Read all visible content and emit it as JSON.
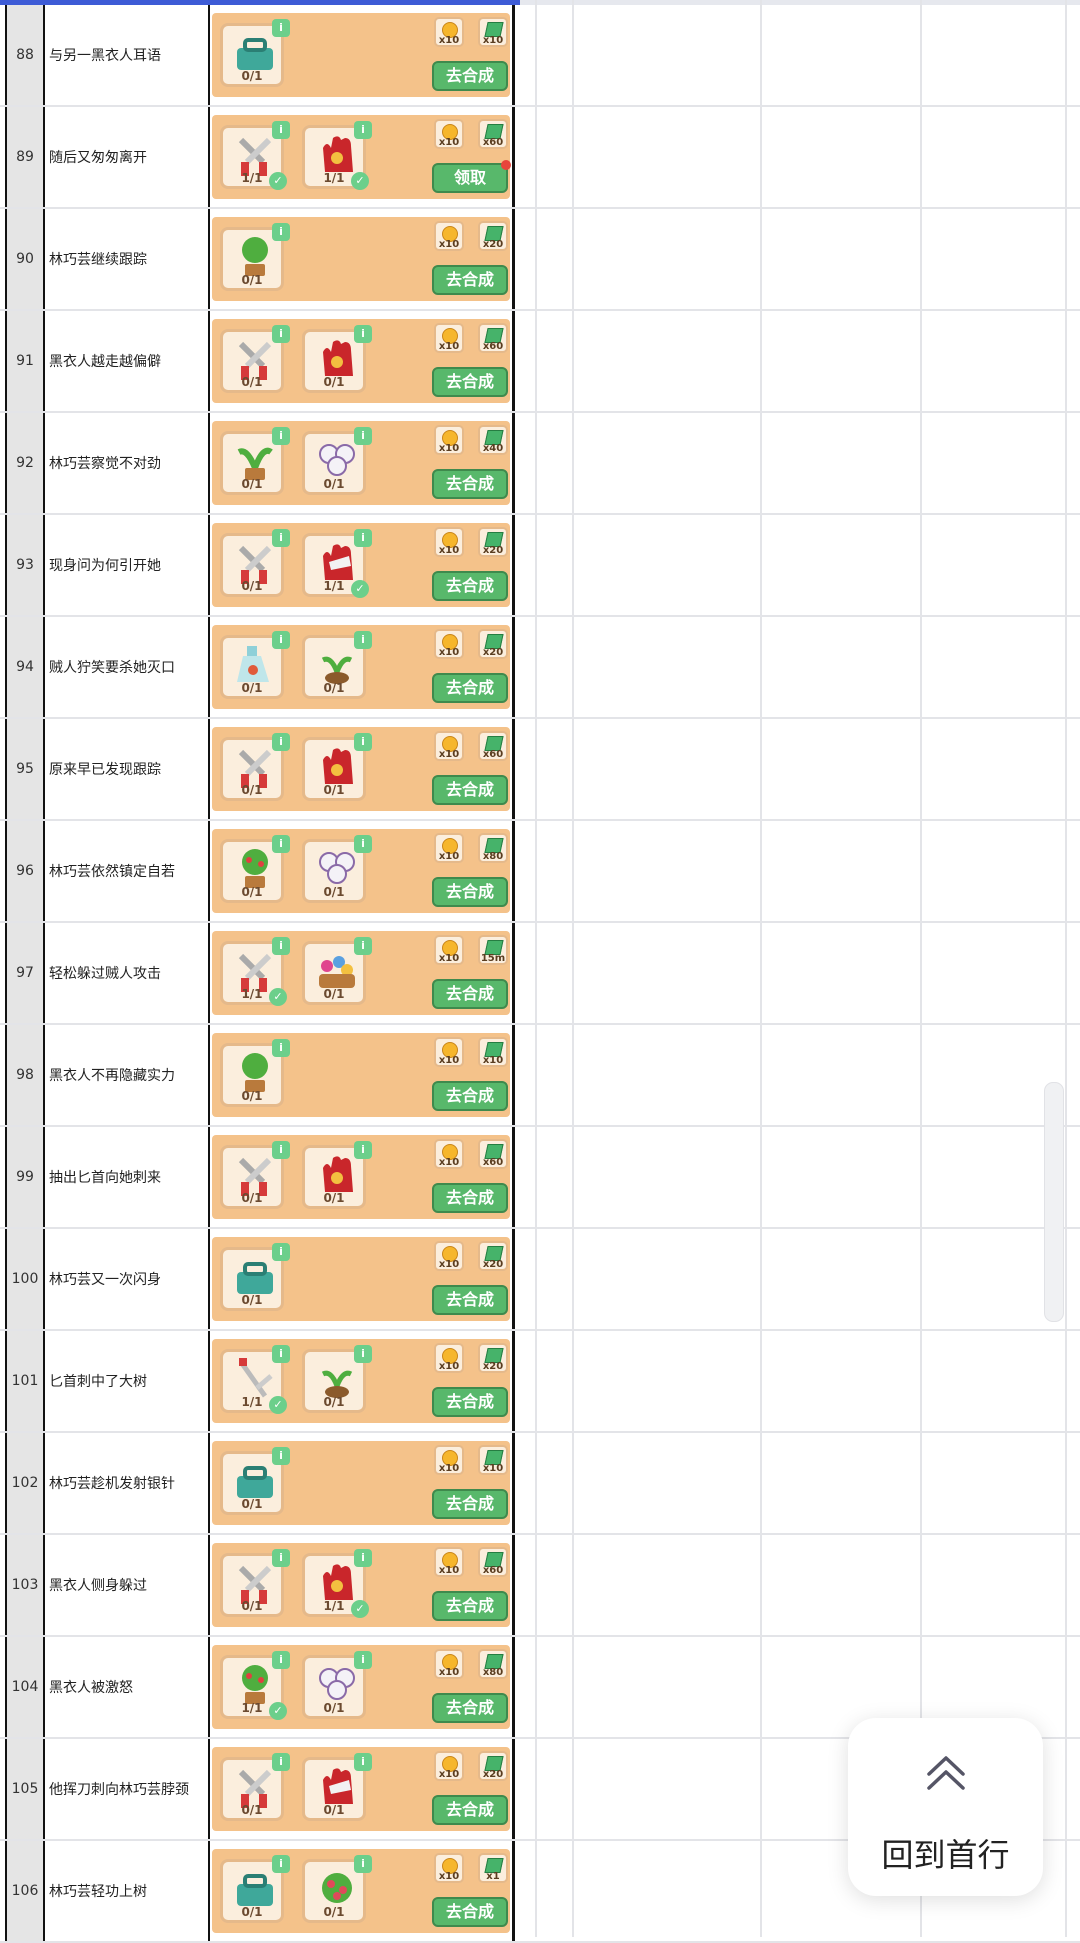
{
  "rows": [
    {
      "no": "88",
      "desc": "与另一黑衣人耳语",
      "items": [
        {
          "icon": "toolbox-icon",
          "count": "0/1",
          "done": false
        }
      ],
      "rewards": [
        "x10",
        "x10"
      ],
      "action": "去合成",
      "dot": false
    },
    {
      "no": "89",
      "desc": "随后又匆匆离开",
      "items": [
        {
          "icon": "scissors-icon",
          "count": "1/1",
          "done": true
        },
        {
          "icon": "glove-icon",
          "count": "1/1",
          "done": true
        }
      ],
      "rewards": [
        "x10",
        "x60"
      ],
      "action": "领取",
      "dot": true
    },
    {
      "no": "90",
      "desc": "林巧芸继续跟踪",
      "items": [
        {
          "icon": "potted-tree-icon",
          "count": "0/1",
          "done": false
        }
      ],
      "rewards": [
        "x10",
        "x20"
      ],
      "action": "去合成",
      "dot": false
    },
    {
      "no": "91",
      "desc": "黑衣人越走越偏僻",
      "items": [
        {
          "icon": "scissors-icon",
          "count": "0/1",
          "done": false
        },
        {
          "icon": "glove-icon",
          "count": "0/1",
          "done": false
        }
      ],
      "rewards": [
        "x10",
        "x60"
      ],
      "action": "去合成",
      "dot": false
    },
    {
      "no": "92",
      "desc": "林巧芸察觉不对劲",
      "items": [
        {
          "icon": "sprout-pot-icon",
          "count": "0/1",
          "done": false
        },
        {
          "icon": "cotton-icon",
          "count": "0/1",
          "done": false
        }
      ],
      "rewards": [
        "x10",
        "x40"
      ],
      "action": "去合成",
      "dot": false
    },
    {
      "no": "93",
      "desc": "现身问为何引开她",
      "items": [
        {
          "icon": "scissors-icon",
          "count": "0/1",
          "done": false
        },
        {
          "icon": "white-glove-icon",
          "count": "1/1",
          "done": true
        }
      ],
      "rewards": [
        "x10",
        "x20"
      ],
      "action": "去合成",
      "dot": false
    },
    {
      "no": "94",
      "desc": "贼人狞笑要杀她灭口",
      "items": [
        {
          "icon": "bottle-icon",
          "count": "0/1",
          "done": false
        },
        {
          "icon": "seedling-icon",
          "count": "0/1",
          "done": false
        }
      ],
      "rewards": [
        "x10",
        "x20"
      ],
      "action": "去合成",
      "dot": false
    },
    {
      "no": "95",
      "desc": "原来早已发现跟踪",
      "items": [
        {
          "icon": "scissors-icon",
          "count": "0/1",
          "done": false
        },
        {
          "icon": "glove-icon",
          "count": "0/1",
          "done": false
        }
      ],
      "rewards": [
        "x10",
        "x60"
      ],
      "action": "去合成",
      "dot": false
    },
    {
      "no": "96",
      "desc": "林巧芸依然镇定自若",
      "items": [
        {
          "icon": "fruit-tree-icon",
          "count": "0/1",
          "done": false
        },
        {
          "icon": "cotton-icon",
          "count": "0/1",
          "done": false
        }
      ],
      "rewards": [
        "x10",
        "x80"
      ],
      "action": "去合成",
      "dot": false
    },
    {
      "no": "97",
      "desc": "轻松躲过贼人攻击",
      "items": [
        {
          "icon": "scissors-icon",
          "count": "1/1",
          "done": true
        },
        {
          "icon": "flower-basket-icon",
          "count": "0/1",
          "done": false
        }
      ],
      "rewards": [
        "x10",
        "15m"
      ],
      "action": "去合成",
      "dot": false
    },
    {
      "no": "98",
      "desc": "黑衣人不再隐藏实力",
      "items": [
        {
          "icon": "potted-tree-icon",
          "count": "0/1",
          "done": false
        }
      ],
      "rewards": [
        "x10",
        "x10"
      ],
      "action": "去合成",
      "dot": false
    },
    {
      "no": "99",
      "desc": "抽出匕首向她刺来",
      "items": [
        {
          "icon": "scissors-icon",
          "count": "0/1",
          "done": false
        },
        {
          "icon": "glove-icon",
          "count": "0/1",
          "done": false
        }
      ],
      "rewards": [
        "x10",
        "x60"
      ],
      "action": "去合成",
      "dot": false
    },
    {
      "no": "100",
      "desc": "林巧芸又一次闪身",
      "items": [
        {
          "icon": "toolbox-icon",
          "count": "0/1",
          "done": false
        }
      ],
      "rewards": [
        "x10",
        "x20"
      ],
      "action": "去合成",
      "dot": false
    },
    {
      "no": "101",
      "desc": "匕首刺中了大树",
      "items": [
        {
          "icon": "rake-icon",
          "count": "1/1",
          "done": true
        },
        {
          "icon": "seedling-icon",
          "count": "0/1",
          "done": false
        }
      ],
      "rewards": [
        "x10",
        "x20"
      ],
      "action": "去合成",
      "dot": false
    },
    {
      "no": "102",
      "desc": "林巧芸趁机发射银针",
      "items": [
        {
          "icon": "toolbox-icon",
          "count": "0/1",
          "done": false
        }
      ],
      "rewards": [
        "x10",
        "x10"
      ],
      "action": "去合成",
      "dot": false
    },
    {
      "no": "103",
      "desc": "黑衣人侧身躲过",
      "items": [
        {
          "icon": "scissors-icon",
          "count": "0/1",
          "done": false
        },
        {
          "icon": "glove-icon",
          "count": "1/1",
          "done": true
        }
      ],
      "rewards": [
        "x10",
        "x60"
      ],
      "action": "去合成",
      "dot": false
    },
    {
      "no": "104",
      "desc": "黑衣人被激怒",
      "items": [
        {
          "icon": "fruit-tree-icon",
          "count": "1/1",
          "done": true
        },
        {
          "icon": "cotton-icon",
          "count": "0/1",
          "done": false
        }
      ],
      "rewards": [
        "x10",
        "x80"
      ],
      "action": "去合成",
      "dot": false
    },
    {
      "no": "105",
      "desc": "他挥刀刺向林巧芸脖颈",
      "items": [
        {
          "icon": "scissors-icon",
          "count": "0/1",
          "done": false
        },
        {
          "icon": "white-glove-icon",
          "count": "0/1",
          "done": false
        }
      ],
      "rewards": [
        "x10",
        "x20"
      ],
      "action": "去合成",
      "dot": false
    },
    {
      "no": "106",
      "desc": "林巧芸轻功上树",
      "items": [
        {
          "icon": "toolbox-icon",
          "count": "0/1",
          "done": false
        },
        {
          "icon": "flower-bush-icon",
          "count": "0/1",
          "done": false
        }
      ],
      "rewards": [
        "x10",
        "x1"
      ],
      "action": "去合成",
      "dot": false
    }
  ],
  "back_to_top": {
    "label": "回到首行",
    "icon": "double-chevron-up-icon"
  },
  "colors": {
    "banner": "#f4c28a",
    "button": "#58b86b",
    "info_badge": "#6ccf8b",
    "grid": "#e3e4e8"
  }
}
